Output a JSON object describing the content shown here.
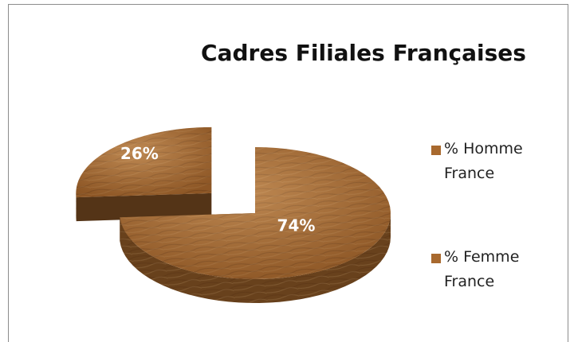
{
  "chart_data": {
    "type": "pie",
    "title": "Cadres Filiales Françaises",
    "categories": [
      "% Homme France",
      "% Femme France"
    ],
    "values": [
      74,
      26
    ],
    "value_labels": [
      "74%",
      "26%"
    ],
    "colors": [
      "#a8692e",
      "#a8692e"
    ],
    "legend": "right"
  }
}
